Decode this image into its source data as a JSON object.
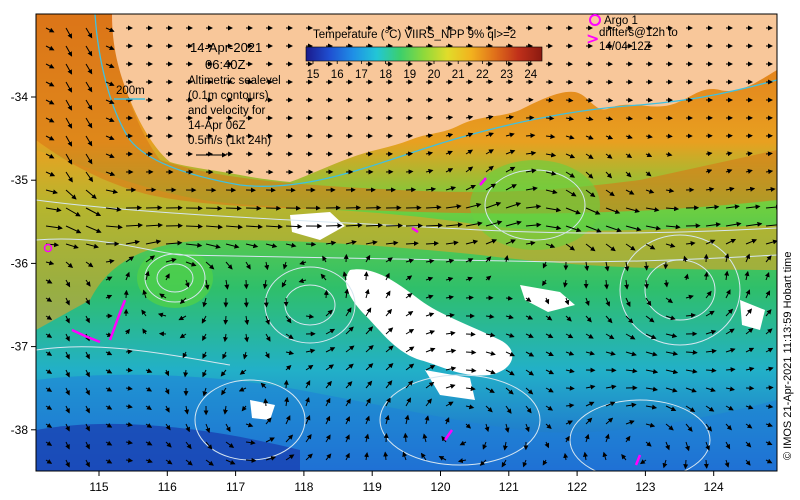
{
  "map": {
    "colorbar": {
      "title": "Temperature (°C) VIIRS_NPP 9% ql>=2",
      "ticks": [
        "15",
        "16",
        "17",
        "18",
        "19",
        "20",
        "21",
        "22",
        "23",
        "24"
      ],
      "colors": [
        "#1a1a8c",
        "#1f4fd1",
        "#1f8fe6",
        "#22c6d6",
        "#3ccf6b",
        "#8fd93a",
        "#e1dc2a",
        "#f2b21e",
        "#e0701a",
        "#c0301a",
        "#8a1a10"
      ]
    },
    "info": {
      "date": "14-Apr-2021",
      "time": "06:40Z",
      "line1": "Altimetric sealevel",
      "line2": "(0.1m contours)",
      "line3": "and velocity for",
      "line4": "14-Apr 06Z",
      "line5": "0.5m/s (1kt 24h)"
    },
    "isobath_label": "200m",
    "legend": {
      "argo": "Argo 1",
      "drifters_line1": "drifters@12h to",
      "drifters_line2": "14/04 12Z"
    },
    "x_ticks": [
      "115",
      "116",
      "117",
      "118",
      "119",
      "120",
      "121",
      "122",
      "123",
      "124"
    ],
    "y_ticks": [
      "-34",
      "-35",
      "-36",
      "-37",
      "-38"
    ],
    "credit": "© IMOS 21-Apr-2021 11:13:59 Hobart time",
    "colors": {
      "land": "#f8c79a",
      "drifter": "#ff00ff",
      "contour": "#d6e6f0",
      "isobath": "#40c0e0"
    }
  }
}
